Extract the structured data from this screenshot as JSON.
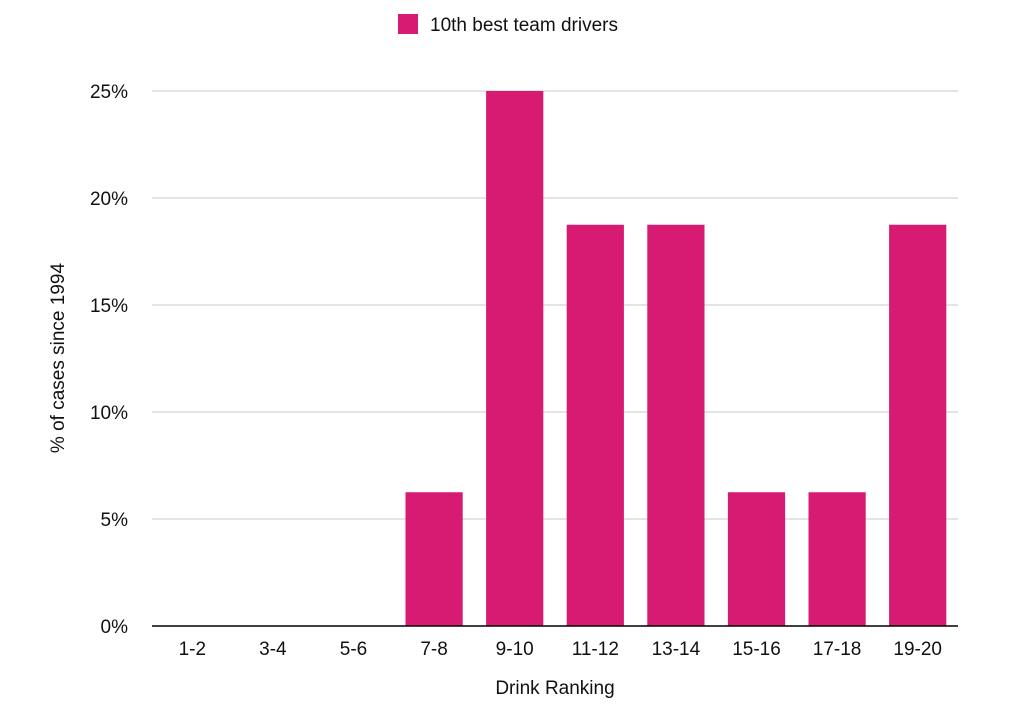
{
  "chart_data": {
    "type": "bar",
    "title": "",
    "xlabel": "Drink Ranking",
    "ylabel": "% of cases since 1994",
    "categories": [
      "1-2",
      "3-4",
      "5-6",
      "7-8",
      "9-10",
      "11-12",
      "13-14",
      "15-16",
      "17-18",
      "19-20"
    ],
    "series": [
      {
        "name": "10th best team drivers",
        "color": "#d81b72",
        "values": [
          0,
          0,
          0,
          6.25,
          25,
          18.75,
          18.75,
          6.25,
          6.25,
          18.75
        ]
      }
    ],
    "ylim": [
      0,
      25
    ],
    "yticks": [
      0,
      5,
      10,
      15,
      20,
      25
    ],
    "ytick_labels": [
      "0%",
      "5%",
      "10%",
      "15%",
      "20%",
      "25%"
    ],
    "grid": true,
    "legend_position": "top-center"
  }
}
